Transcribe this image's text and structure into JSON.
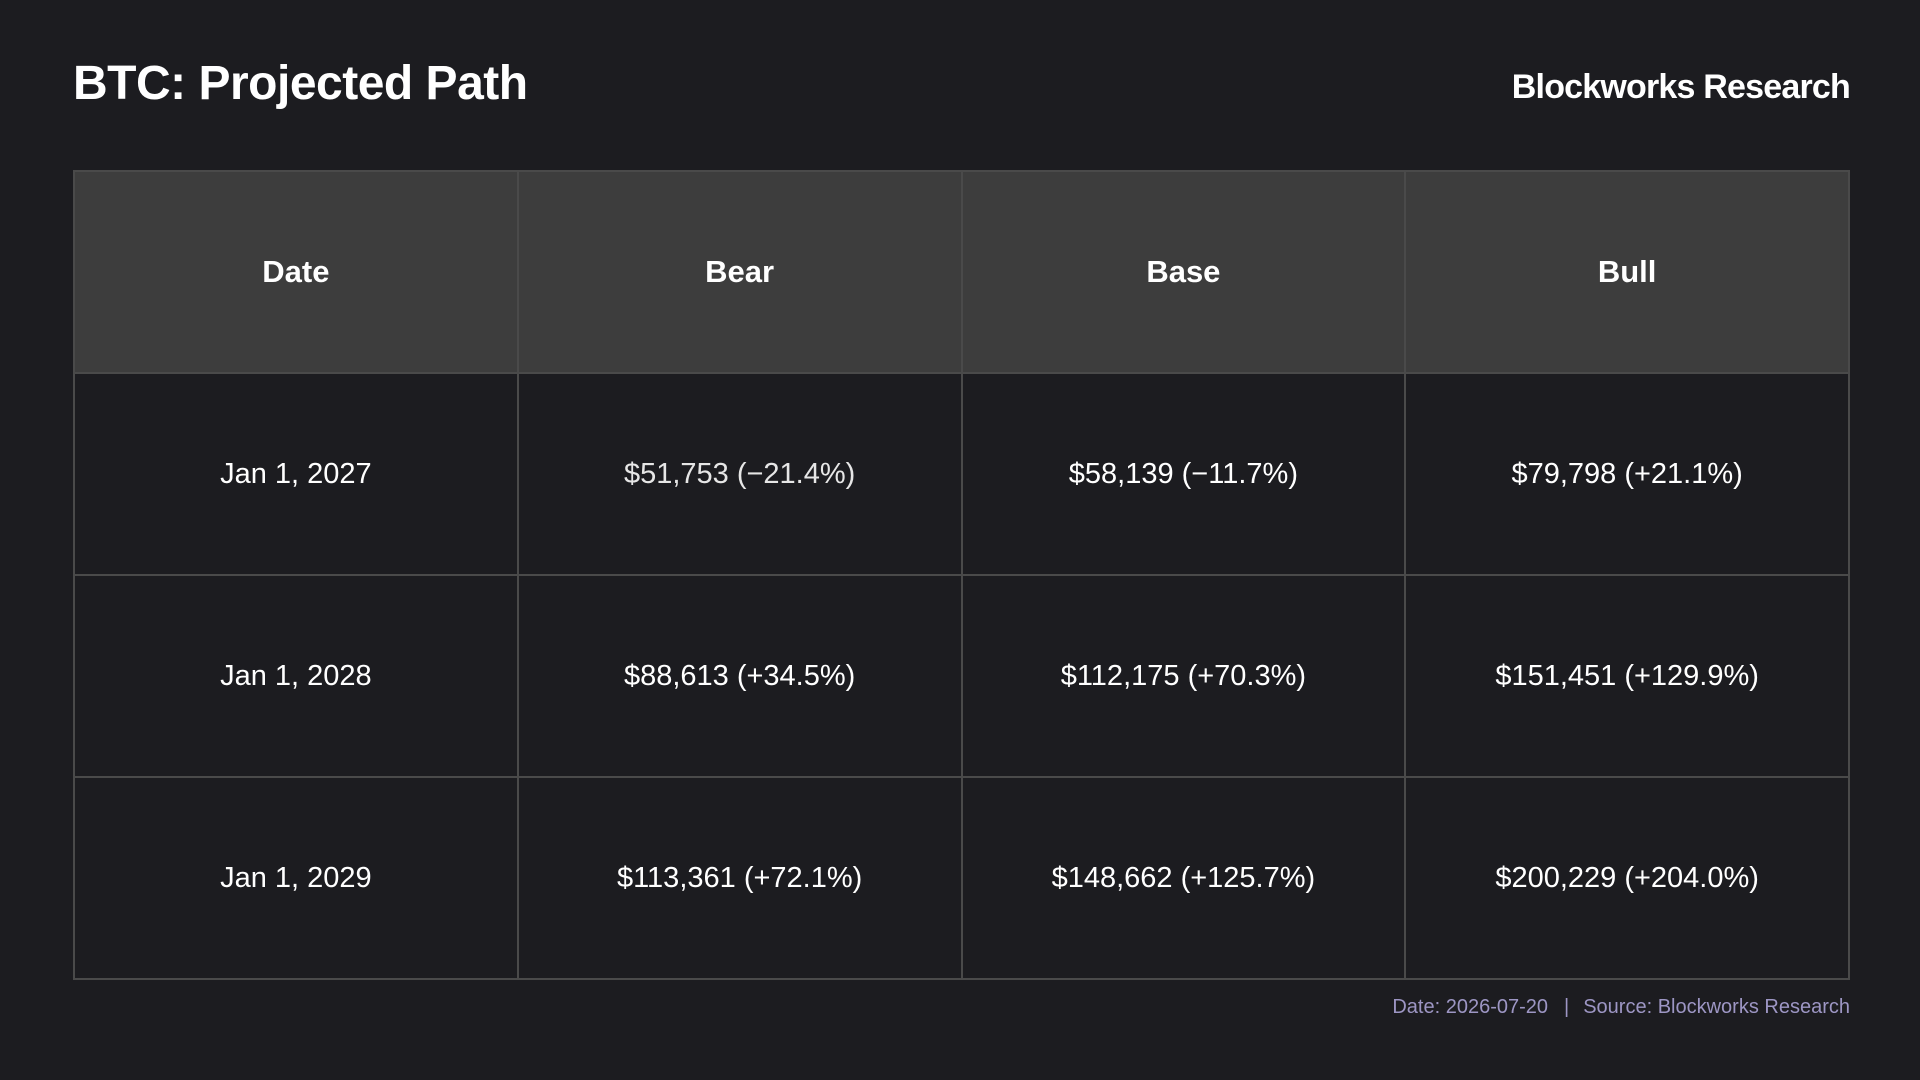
{
  "header": {
    "title": "BTC: Projected Path",
    "brand": "Blockworks Research"
  },
  "footer": {
    "date": "Date: 2026-07-20",
    "separator": "|",
    "source": "Source: Blockworks Research"
  },
  "chart_data": {
    "type": "table",
    "title": "BTC: Projected Path",
    "columns": [
      "Date",
      "Bear",
      "Base",
      "Bull"
    ],
    "rows": [
      [
        "Jan 1, 2027",
        "$51,753 (−21.4%)",
        "$58,139 (−11.7%)",
        "$79,798 (+21.1%)"
      ],
      [
        "Jan 1, 2028",
        "$88,613 (+34.5%)",
        "$112,175 (+70.3%)",
        "$151,451 (+129.9%)"
      ],
      [
        "Jan 1, 2029",
        "$113,361 (+72.1%)",
        "$148,662 (+125.7%)",
        "$200,229 (+204.0%)"
      ]
    ]
  }
}
